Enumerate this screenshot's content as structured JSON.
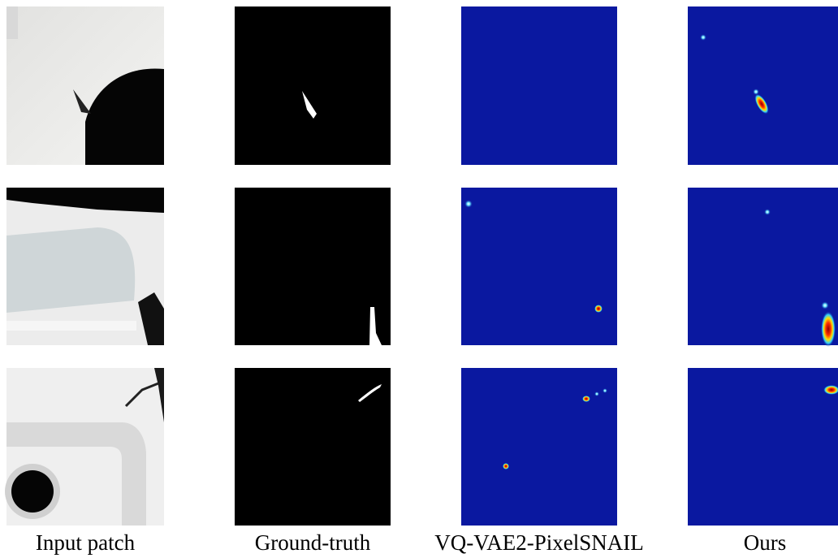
{
  "figure": {
    "column_labels": [
      "Input patch",
      "Ground-truth",
      "VQ-VAE2-PixelSNAIL",
      "Ours"
    ]
  }
}
